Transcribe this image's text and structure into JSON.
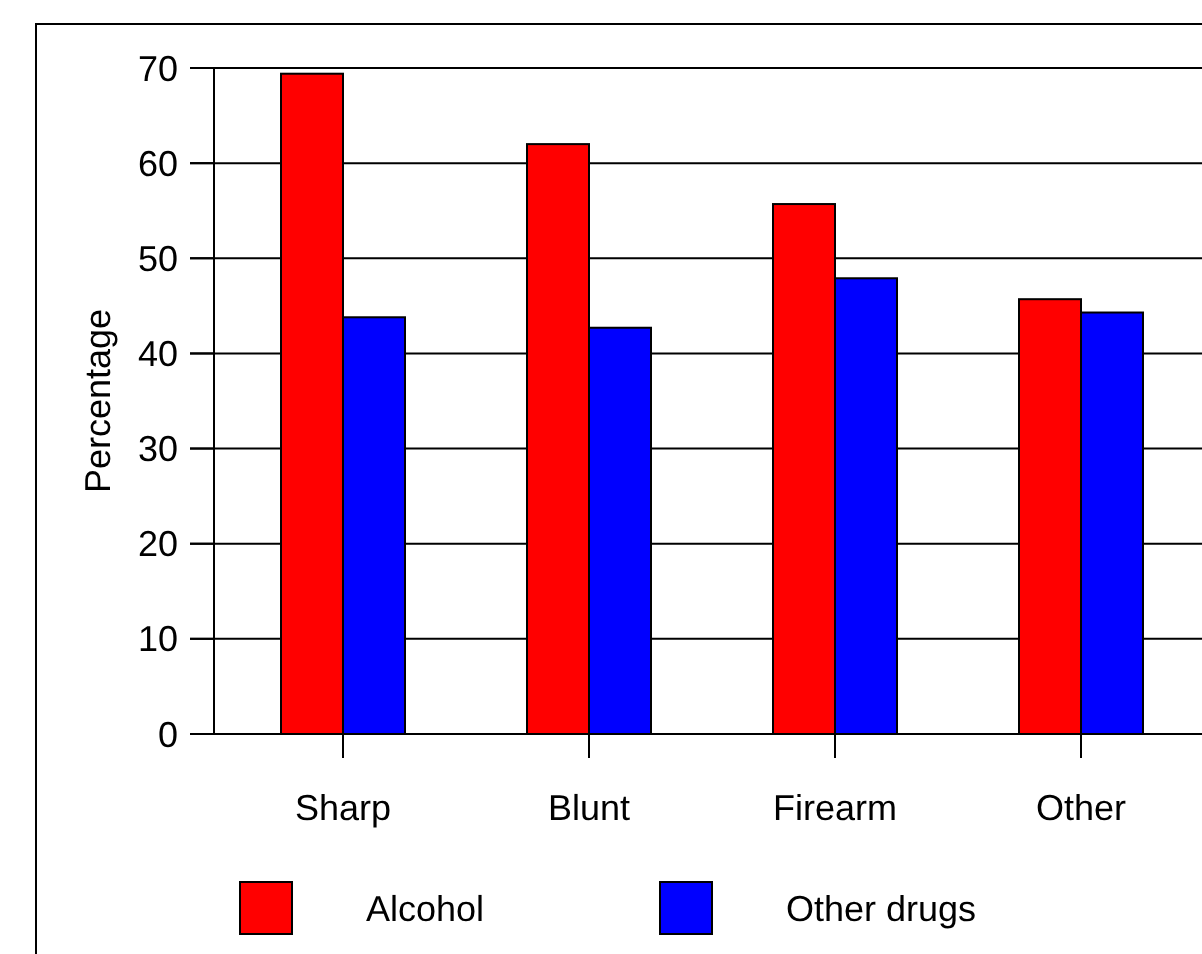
{
  "chart_data": {
    "type": "bar",
    "ylabel": "Percentage",
    "categories": [
      "Sharp",
      "Blunt",
      "Firearm",
      "Other"
    ],
    "series": [
      {
        "name": "Alcohol",
        "color": "#ff0000",
        "values": [
          69.4,
          62.0,
          55.7,
          45.7
        ]
      },
      {
        "name": "Other drugs",
        "color": "#0000ff",
        "values": [
          43.8,
          42.7,
          47.9,
          44.3
        ]
      }
    ],
    "ylim": [
      0,
      70
    ],
    "yticks": [
      0,
      10,
      20,
      30,
      40,
      50,
      60,
      70
    ],
    "grid": "y",
    "legend": "bottom"
  }
}
